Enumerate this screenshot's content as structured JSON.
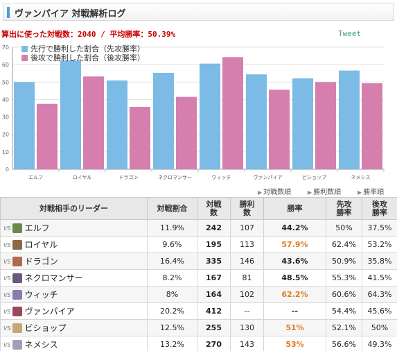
{
  "header": {
    "title": "ヴァンパイア 対戦解析ログ"
  },
  "summary": {
    "text": "算出に使った対戦数：2040 / 平均勝率：50.39%"
  },
  "tweet": {
    "label": "Tweet"
  },
  "chart_data": {
    "type": "bar",
    "categories": [
      "エルフ",
      "ロイヤル",
      "ドラゴン",
      "ネクロマンサー",
      "ウィッチ",
      "ヴァンパイア",
      "ビショップ",
      "ネメシス"
    ],
    "series": [
      {
        "name": "先行で勝利した割合（先攻勝率）",
        "color": "#7bbbe6",
        "values": [
          50,
          62.4,
          50.9,
          55.3,
          60.6,
          54.4,
          52.1,
          56.6
        ]
      },
      {
        "name": "後攻で勝利した割合（後攻勝率）",
        "color": "#d67fae",
        "values": [
          37.5,
          53.2,
          35.8,
          41.5,
          64.3,
          45.6,
          50,
          49.3
        ]
      }
    ],
    "yticks": [
      "0",
      "10",
      "20",
      "30",
      "40",
      "50",
      "60",
      "70"
    ],
    "ylim": [
      0,
      70
    ],
    "grid": true,
    "legend_position": "top-left",
    "xlabel": "",
    "ylabel": ""
  },
  "sort_links": [
    {
      "label": "対戦数順"
    },
    {
      "label": "勝利数順"
    },
    {
      "label": "勝率順"
    }
  ],
  "table": {
    "headers": [
      "対戦相手のリーダー",
      "対戦割合",
      "対戦\n数",
      "勝利\n数",
      "勝率",
      "先攻\n勝率",
      "後攻\n勝率"
    ],
    "vs_label": "VS",
    "rows": [
      {
        "leader": "エルフ",
        "share": "11.9%",
        "games": "242",
        "wins": "107",
        "winrate": "44.2%",
        "first": "50%",
        "second": "37.5%",
        "avatar": "#6b8a4a",
        "hi": false
      },
      {
        "leader": "ロイヤル",
        "share": "9.6%",
        "games": "195",
        "wins": "113",
        "winrate": "57.9%",
        "first": "62.4%",
        "second": "53.2%",
        "avatar": "#8a6a4a",
        "hi": true
      },
      {
        "leader": "ドラゴン",
        "share": "16.4%",
        "games": "335",
        "wins": "146",
        "winrate": "43.6%",
        "first": "50.9%",
        "second": "35.8%",
        "avatar": "#b06a50",
        "hi": false
      },
      {
        "leader": "ネクロマンサー",
        "share": "8.2%",
        "games": "167",
        "wins": "81",
        "winrate": "48.5%",
        "first": "55.3%",
        "second": "41.5%",
        "avatar": "#6a5a7a",
        "hi": false
      },
      {
        "leader": "ウィッチ",
        "share": "8%",
        "games": "164",
        "wins": "102",
        "winrate": "62.2%",
        "first": "60.6%",
        "second": "64.3%",
        "avatar": "#8a7ab0",
        "hi": true
      },
      {
        "leader": "ヴァンパイア",
        "share": "20.2%",
        "games": "412",
        "wins": "--",
        "winrate": "--",
        "first": "54.4%",
        "second": "45.6%",
        "avatar": "#9a4a5a",
        "hi": false
      },
      {
        "leader": "ビショップ",
        "share": "12.5%",
        "games": "255",
        "wins": "130",
        "winrate": "51%",
        "first": "52.1%",
        "second": "50%",
        "avatar": "#c8a878",
        "hi": true
      },
      {
        "leader": "ネメシス",
        "share": "13.2%",
        "games": "270",
        "wins": "143",
        "winrate": "53%",
        "first": "56.6%",
        "second": "49.3%",
        "avatar": "#a0a0b8",
        "hi": true
      }
    ]
  }
}
